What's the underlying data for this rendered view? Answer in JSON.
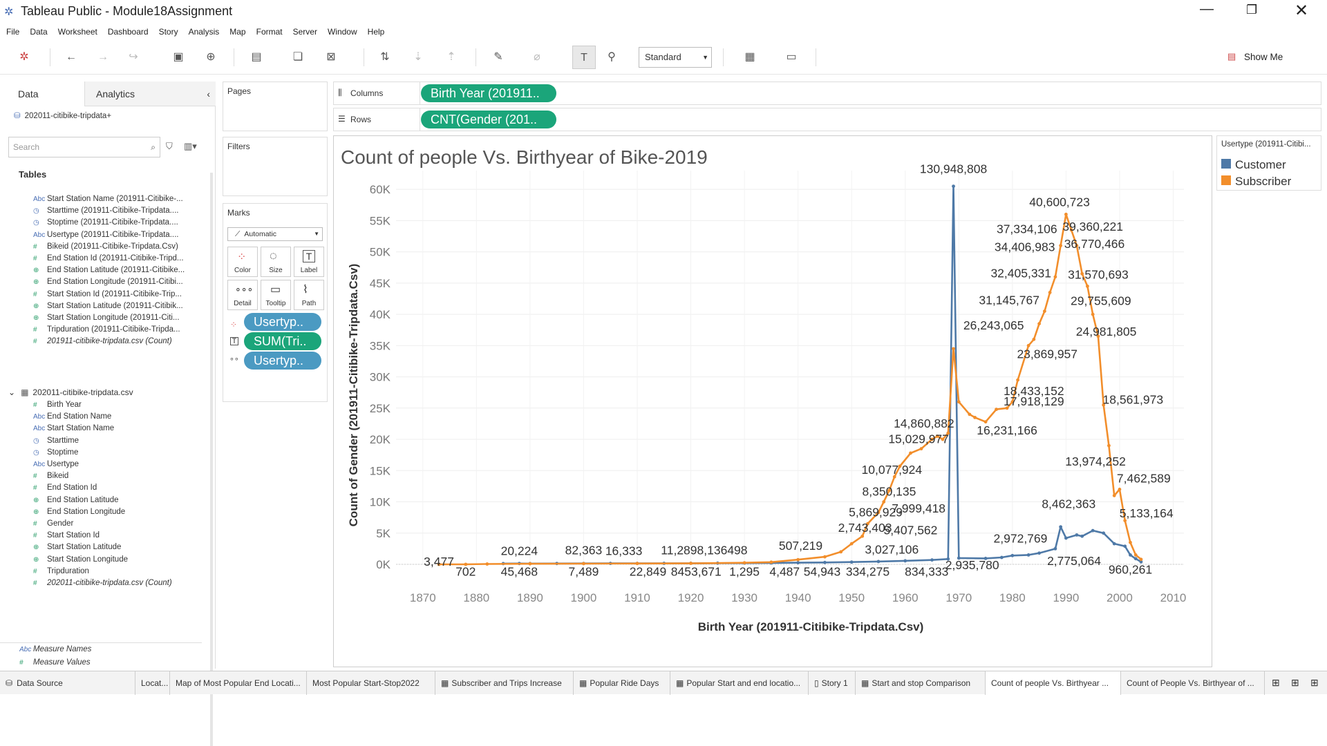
{
  "window": {
    "title": "Tableau Public - Module18Assignment"
  },
  "menu": [
    "File",
    "Data",
    "Worksheet",
    "Dashboard",
    "Story",
    "Analysis",
    "Map",
    "Format",
    "Server",
    "Window",
    "Help"
  ],
  "toolbar": {
    "view_mode": "Standard",
    "show_me": "Show Me"
  },
  "left_panel": {
    "tabs": [
      "Data",
      "Analytics"
    ],
    "datasource": "202011-citibike-tripdata+",
    "search_placeholder": "Search",
    "tables_heading": "Tables",
    "fields_top": [
      {
        "type": "Abc",
        "name": "Start Station Name (201911-Citibike-..."
      },
      {
        "type": "date",
        "name": "Starttime (201911-Citibike-Tripdata...."
      },
      {
        "type": "date",
        "name": "Stoptime (201911-Citibike-Tripdata...."
      },
      {
        "type": "Abc",
        "name": "Usertype (201911-Citibike-Tripdata...."
      },
      {
        "type": "#",
        "name": "Bikeid (201911-Citibike-Tripdata.Csv)"
      },
      {
        "type": "#",
        "name": "End Station Id (201911-Citibike-Tripd..."
      },
      {
        "type": "geo",
        "name": "End Station Latitude (201911-Citibike..."
      },
      {
        "type": "geo",
        "name": "End Station Longitude (201911-Citibi..."
      },
      {
        "type": "#",
        "name": "Start Station Id (201911-Citibike-Trip..."
      },
      {
        "type": "geo",
        "name": "Start Station Latitude (201911-Citibik..."
      },
      {
        "type": "geo",
        "name": "Start Station Longitude (201911-Citi..."
      },
      {
        "type": "#",
        "name": "Tripduration (201911-Citibike-Tripda..."
      },
      {
        "type": "#",
        "name": "201911-citibike-tripdata.csv (Count)"
      }
    ],
    "table2_name": "202011-citibike-tripdata.csv",
    "fields_bottom": [
      {
        "type": "#",
        "name": "Birth Year"
      },
      {
        "type": "Abc",
        "name": "End Station Name"
      },
      {
        "type": "Abc",
        "name": "Start Station Name"
      },
      {
        "type": "date",
        "name": "Starttime"
      },
      {
        "type": "date",
        "name": "Stoptime"
      },
      {
        "type": "Abc",
        "name": "Usertype"
      },
      {
        "type": "#",
        "name": "Bikeid"
      },
      {
        "type": "#",
        "name": "End Station Id"
      },
      {
        "type": "geo",
        "name": "End Station Latitude"
      },
      {
        "type": "geo",
        "name": "End Station Longitude"
      },
      {
        "type": "#",
        "name": "Gender"
      },
      {
        "type": "#",
        "name": "Start Station Id"
      },
      {
        "type": "geo",
        "name": "Start Station Latitude"
      },
      {
        "type": "geo",
        "name": "Start Station Longitude"
      },
      {
        "type": "#",
        "name": "Tripduration"
      },
      {
        "type": "#",
        "name": "202011-citibike-tripdata.csv (Count)"
      }
    ],
    "measure_names": "Measure Names",
    "measure_values": "Measure Values"
  },
  "cards": {
    "pages": "Pages",
    "filters": "Filters",
    "marks": "Marks",
    "marks_type": "Automatic",
    "mark_buttons": [
      "Color",
      "Size",
      "Label",
      "Detail",
      "Tooltip",
      "Path"
    ],
    "mark_pills": [
      "Usertyp..",
      "SUM(Tri..",
      "Usertyp.."
    ]
  },
  "shelves": {
    "columns_label": "Columns",
    "rows_label": "Rows",
    "columns_pill": "Birth Year (201911..",
    "rows_pill": "CNT(Gender (201.."
  },
  "legend": {
    "title": "Usertype (201911-Citibi...",
    "items": [
      {
        "label": "Customer",
        "color": "#4e79a7"
      },
      {
        "label": "Subscriber",
        "color": "#f28e2b"
      }
    ]
  },
  "chart_data": {
    "type": "line",
    "title": "Count of people Vs. Birthyear of Bike-2019",
    "xlabel": "Birth Year (201911-Citibike-Tripdata.Csv)",
    "ylabel": "Count of Gender (201911-Citibike-Tripdata.Csv)",
    "xlim": [
      1865,
      2012
    ],
    "ylim": [
      0,
      63000
    ],
    "x_ticks": [
      "1870",
      "1880",
      "1890",
      "1900",
      "1910",
      "1920",
      "1930",
      "1940",
      "1950",
      "1960",
      "1970",
      "1980",
      "1990",
      "2000",
      "2010"
    ],
    "y_ticks": [
      "0K",
      "5K",
      "10K",
      "15K",
      "20K",
      "25K",
      "30K",
      "35K",
      "40K",
      "45K",
      "50K",
      "55K",
      "60K"
    ],
    "series": [
      {
        "name": "Customer",
        "color": "#4e79a7",
        "points": [
          [
            1885,
            120
          ],
          [
            1888,
            130
          ],
          [
            1890,
            120
          ],
          [
            1895,
            130
          ],
          [
            1900,
            140
          ],
          [
            1905,
            150
          ],
          [
            1910,
            150
          ],
          [
            1915,
            160
          ],
          [
            1920,
            170
          ],
          [
            1925,
            190
          ],
          [
            1930,
            200
          ],
          [
            1935,
            230
          ],
          [
            1940,
            260
          ],
          [
            1945,
            300
          ],
          [
            1950,
            360
          ],
          [
            1955,
            450
          ],
          [
            1960,
            560
          ],
          [
            1965,
            700
          ],
          [
            1968,
            850
          ],
          [
            1969,
            60500
          ],
          [
            1970,
            1000
          ],
          [
            1975,
            950
          ],
          [
            1978,
            1100
          ],
          [
            1980,
            1400
          ],
          [
            1983,
            1500
          ],
          [
            1985,
            1800
          ],
          [
            1988,
            2500
          ],
          [
            1989,
            6000
          ],
          [
            1990,
            4200
          ],
          [
            1992,
            4700
          ],
          [
            1993,
            4500
          ],
          [
            1995,
            5400
          ],
          [
            1997,
            5000
          ],
          [
            1999,
            3300
          ],
          [
            2001,
            2900
          ],
          [
            2002,
            1500
          ],
          [
            2003,
            900
          ],
          [
            2004,
            400
          ]
        ]
      },
      {
        "name": "Subscriber",
        "color": "#f28e2b",
        "points": [
          [
            1873,
            0
          ],
          [
            1878,
            0
          ],
          [
            1882,
            50
          ],
          [
            1890,
            90
          ],
          [
            1900,
            110
          ],
          [
            1910,
            130
          ],
          [
            1920,
            160
          ],
          [
            1930,
            250
          ],
          [
            1935,
            350
          ],
          [
            1940,
            750
          ],
          [
            1945,
            1200
          ],
          [
            1948,
            2000
          ],
          [
            1950,
            3300
          ],
          [
            1952,
            4500
          ],
          [
            1953,
            6500
          ],
          [
            1955,
            8300
          ],
          [
            1956,
            10000
          ],
          [
            1957,
            11800
          ],
          [
            1958,
            14000
          ],
          [
            1959,
            15700
          ],
          [
            1961,
            17800
          ],
          [
            1963,
            18500
          ],
          [
            1965,
            20000
          ],
          [
            1966,
            20500
          ],
          [
            1967,
            20000
          ],
          [
            1968,
            21000
          ],
          [
            1969,
            34500
          ],
          [
            1970,
            26000
          ],
          [
            1972,
            24000
          ],
          [
            1973,
            23500
          ],
          [
            1975,
            22800
          ],
          [
            1977,
            24800
          ],
          [
            1979,
            25000
          ],
          [
            1980,
            26000
          ],
          [
            1981,
            29500
          ],
          [
            1983,
            35000
          ],
          [
            1984,
            36000
          ],
          [
            1985,
            38500
          ],
          [
            1986,
            40500
          ],
          [
            1987,
            43500
          ],
          [
            1988,
            46000
          ],
          [
            1989,
            51000
          ],
          [
            1990,
            56000
          ],
          [
            1991,
            53500
          ],
          [
            1992,
            51000
          ],
          [
            1993,
            46500
          ],
          [
            1994,
            44500
          ],
          [
            1995,
            40000
          ],
          [
            1996,
            36500
          ],
          [
            1997,
            25500
          ],
          [
            1998,
            19000
          ],
          [
            1999,
            11000
          ],
          [
            2000,
            12000
          ],
          [
            2001,
            7000
          ],
          [
            2002,
            3500
          ],
          [
            2003,
            1500
          ],
          [
            2004,
            800
          ]
        ]
      }
    ],
    "annotations": [
      {
        "text": "130,948,808",
        "x": 1969,
        "y": 62600,
        "color": "#333"
      },
      {
        "text": "40,600,723",
        "x": 1988.8,
        "y": 57300
      },
      {
        "text": "37,334,106",
        "x": 1982.7,
        "y": 53000
      },
      {
        "text": "39,360,221",
        "x": 1995,
        "y": 53400
      },
      {
        "text": "34,406,983",
        "x": 1982.3,
        "y": 50100
      },
      {
        "text": "36,770,466",
        "x": 1995.3,
        "y": 50600
      },
      {
        "text": "32,405,331",
        "x": 1981.6,
        "y": 45900
      },
      {
        "text": "31,570,693",
        "x": 1996,
        "y": 45700
      },
      {
        "text": "31,145,767",
        "x": 1979.4,
        "y": 41600
      },
      {
        "text": "29,755,609",
        "x": 1996.5,
        "y": 41500
      },
      {
        "text": "26,243,065",
        "x": 1976.5,
        "y": 37600
      },
      {
        "text": "24,981,805",
        "x": 1997.5,
        "y": 36600
      },
      {
        "text": "23,869,957",
        "x": 1986.5,
        "y": 33000
      },
      {
        "text": "18,433,152",
        "x": 1984,
        "y": 27100
      },
      {
        "text": "17,918,129",
        "x": 1984,
        "y": 25400
      },
      {
        "text": "18,561,973",
        "x": 2002.5,
        "y": 25700
      },
      {
        "text": "16,231,166",
        "x": 1979,
        "y": 20800
      },
      {
        "text": "14,860,882",
        "x": 1963.5,
        "y": 21900
      },
      {
        "text": "15,029,977",
        "x": 1962.5,
        "y": 19400
      },
      {
        "text": "13,974,252",
        "x": 1995.5,
        "y": 15800
      },
      {
        "text": "10,077,924",
        "x": 1957.5,
        "y": 14500
      },
      {
        "text": "8,350,135",
        "x": 1957,
        "y": 11000
      },
      {
        "text": "7,462,589",
        "x": 2004.5,
        "y": 13100
      },
      {
        "text": "5,869,929",
        "x": 1954.5,
        "y": 7700
      },
      {
        "text": "7,999,418",
        "x": 1962.5,
        "y": 8300
      },
      {
        "text": "8,462,363",
        "x": 1990.5,
        "y": 9000
      },
      {
        "text": "5,133,164",
        "x": 2005,
        "y": 7500
      },
      {
        "text": "2,743,403",
        "x": 1952.5,
        "y": 5200
      },
      {
        "text": "5,407,562",
        "x": 1961,
        "y": 4800
      },
      {
        "text": "2,972,769",
        "x": 1981.5,
        "y": 3500
      },
      {
        "text": "507,219",
        "x": 1940.5,
        "y": 2300
      },
      {
        "text": "3,027,106",
        "x": 1957.5,
        "y": 1700
      },
      {
        "text": "20,224",
        "x": 1888,
        "y": 1500
      },
      {
        "text": "82,363",
        "x": 1900,
        "y": 1600
      },
      {
        "text": "16,333",
        "x": 1907.5,
        "y": 1500
      },
      {
        "text": "11,2898,136498",
        "x": 1922.5,
        "y": 1600
      },
      {
        "text": "3,477",
        "x": 1873,
        "y": -200
      },
      {
        "text": "2,775,064",
        "x": 1991.5,
        "y": -100
      },
      {
        "text": "2,935,780",
        "x": 1972.5,
        "y": -800
      },
      {
        "text": "702",
        "x": 1878,
        "y": -1800
      },
      {
        "text": "45,468",
        "x": 1888,
        "y": -1800
      },
      {
        "text": "7,489",
        "x": 1900,
        "y": -1800
      },
      {
        "text": "22,849",
        "x": 1912,
        "y": -1800
      },
      {
        "text": "8453,671",
        "x": 1921,
        "y": -1800
      },
      {
        "text": "1,295",
        "x": 1930,
        "y": -1800
      },
      {
        "text": "4,487",
        "x": 1937.5,
        "y": -1800
      },
      {
        "text": "54,943",
        "x": 1944.5,
        "y": -1800
      },
      {
        "text": "334,275",
        "x": 1953,
        "y": -1800
      },
      {
        "text": "834,333",
        "x": 1964,
        "y": -1800
      },
      {
        "text": "960,261",
        "x": 2002,
        "y": -1500
      }
    ]
  },
  "sheet_tabs": [
    "Data Source",
    "Locat...",
    "Map of Most Popular End Locati...",
    "Most Popular Start-Stop2022",
    "Subscriber and Trips Increase",
    "Popular Ride Days",
    "Popular Start and end locatio...",
    "Story 1",
    "Start and stop Comparison",
    "Count of people Vs. Birthyear ...",
    "Count of People Vs. Birthyear of ..."
  ]
}
